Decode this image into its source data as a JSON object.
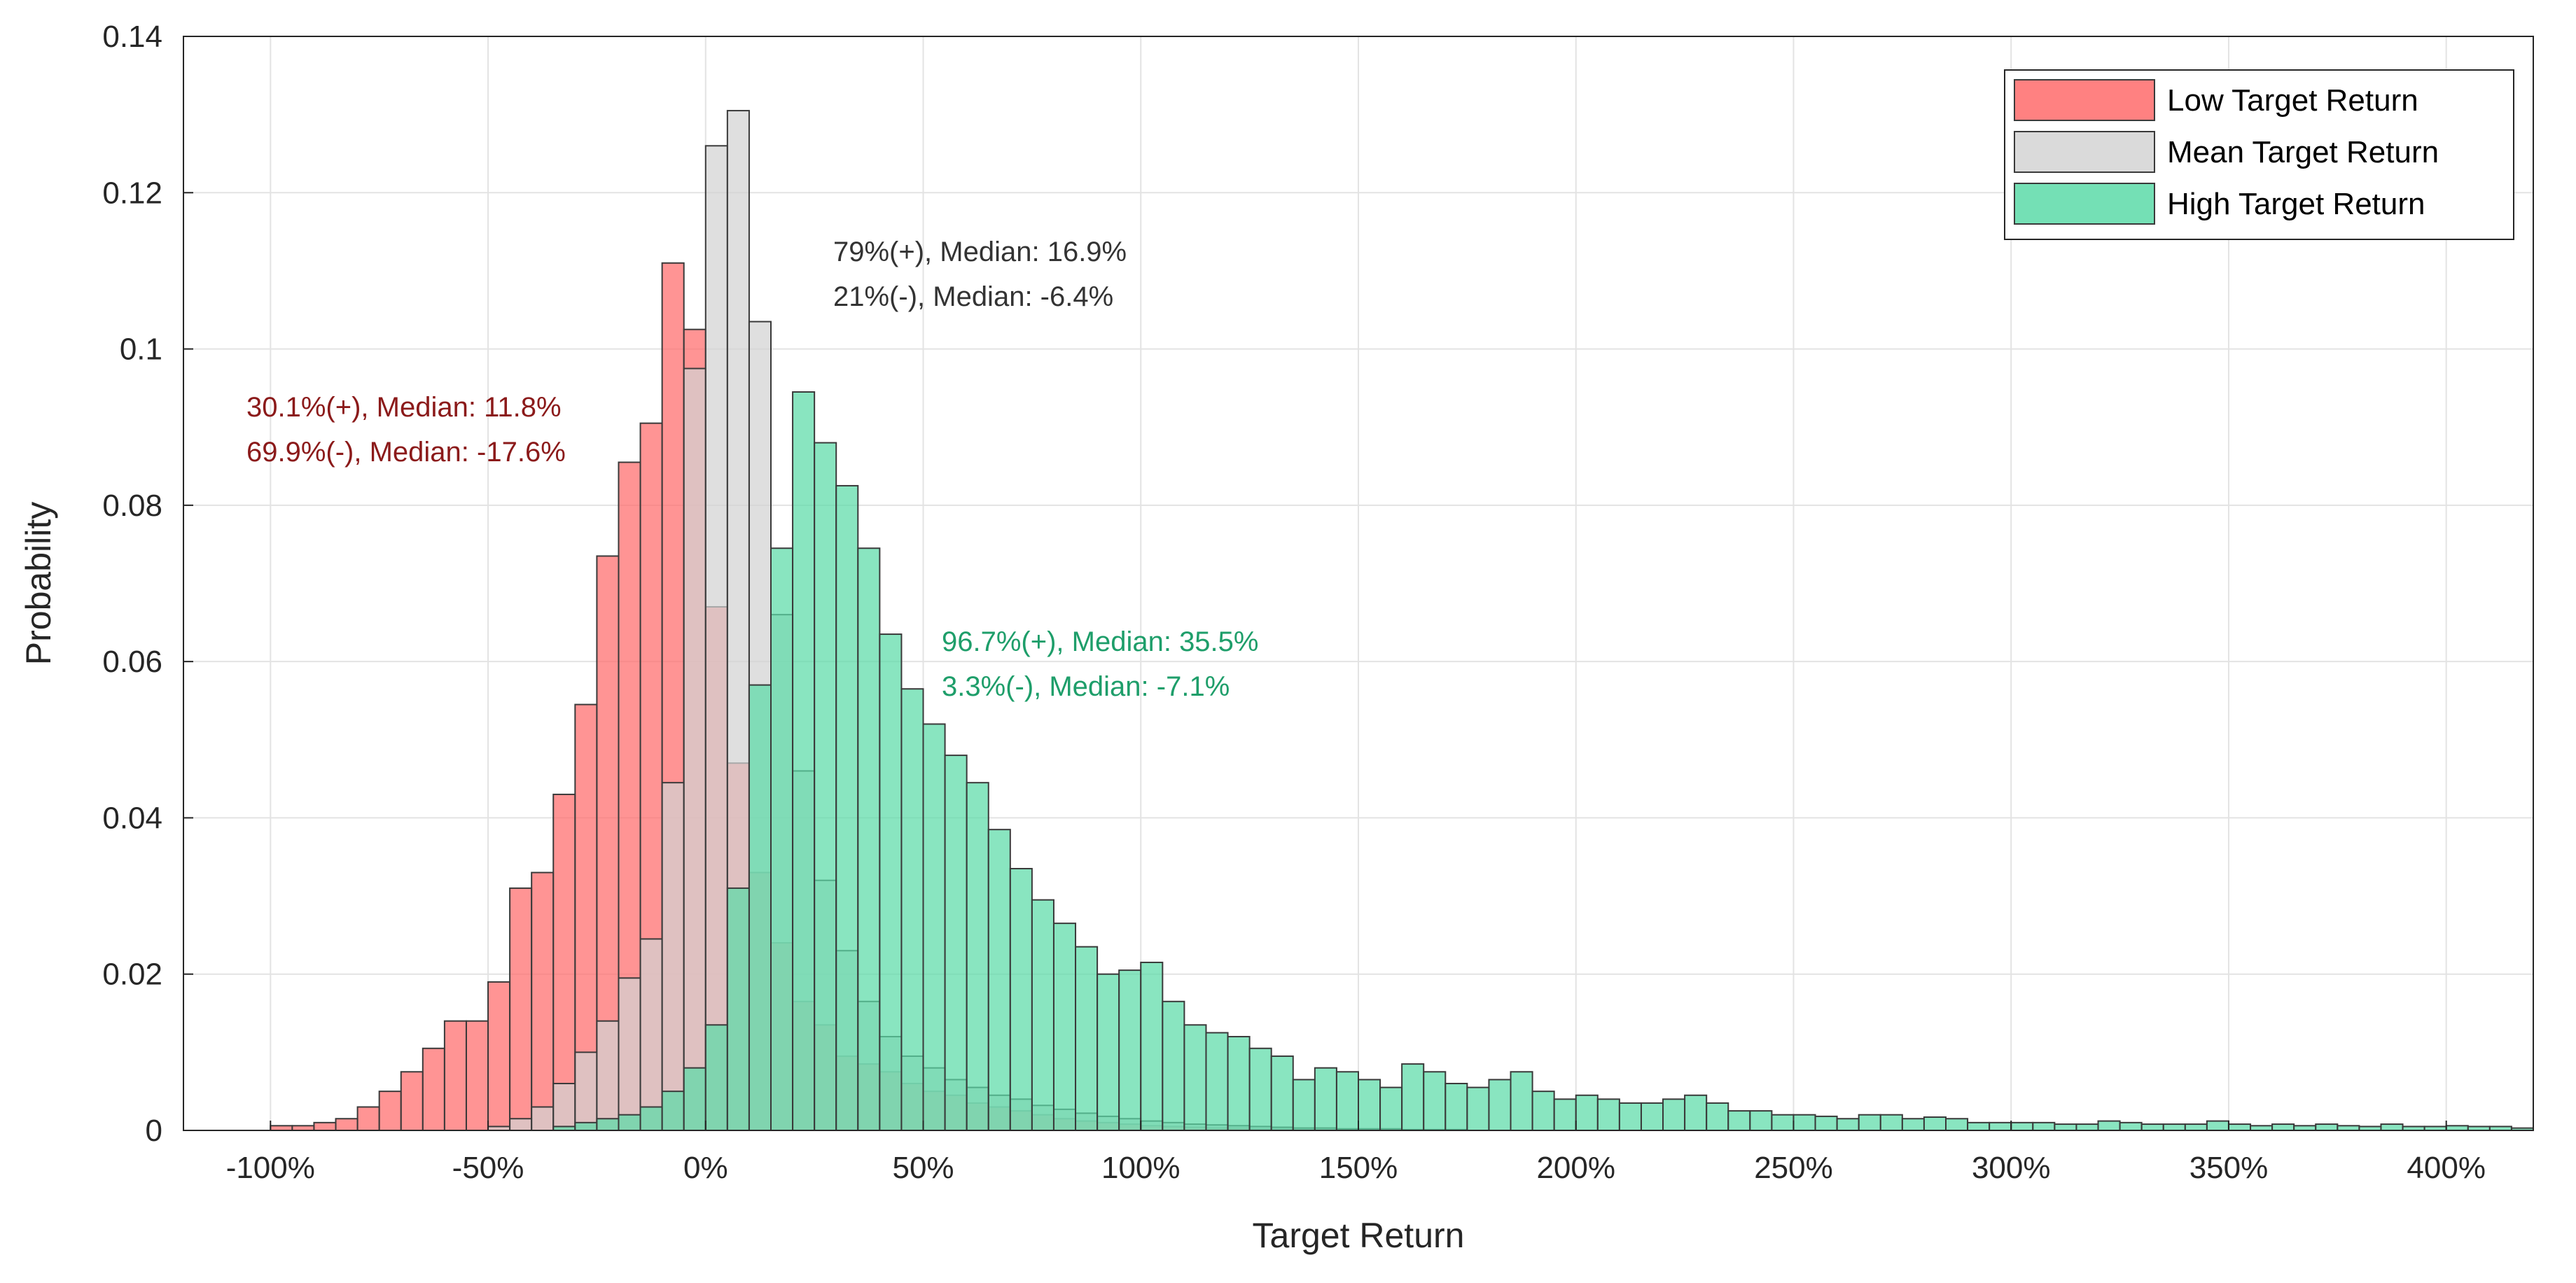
{
  "chart_data": {
    "type": "histogram",
    "xlabel": "Target Return",
    "ylabel": "Probability",
    "xlim": [
      -1.2,
      4.2
    ],
    "ylim": [
      0,
      0.14
    ],
    "grid": true,
    "legend_position": "top-right",
    "bin_width": 0.05,
    "bin_start": -1.0,
    "x_ticks": [
      -1.0,
      -0.5,
      0.0,
      0.5,
      1.0,
      1.5,
      2.0,
      2.5,
      3.0,
      3.5,
      4.0
    ],
    "x_tick_labels": [
      "-100%",
      "-50%",
      "0%",
      "50%",
      "100%",
      "150%",
      "200%",
      "250%",
      "300%",
      "350%",
      "400%"
    ],
    "y_ticks": [
      0,
      0.02,
      0.04,
      0.06,
      0.08,
      0.1,
      0.12,
      0.14
    ],
    "y_tick_labels": [
      "0",
      "0.02",
      "0.04",
      "0.06",
      "0.08",
      "0.1",
      "0.12",
      "0.14"
    ],
    "series": [
      {
        "name": "Low Target Return",
        "color": "#ff6b6b",
        "values": [
          0.0006,
          0.0006,
          0.001,
          0.0015,
          0.003,
          0.005,
          0.0075,
          0.0105,
          0.014,
          0.014,
          0.019,
          0.031,
          0.033,
          0.043,
          0.0545,
          0.0735,
          0.0855,
          0.0905,
          0.111,
          0.1025,
          0.067,
          0.047,
          0.033,
          0.024,
          0.0165,
          0.0135,
          0.0095,
          0.0085,
          0.0075,
          0.006,
          0.005,
          0.0045,
          0.0035,
          0.003,
          0.0025,
          0.002,
          0.0015,
          0.0012,
          0.001,
          0.0008,
          0.0006,
          0.0005,
          0.0004,
          0.0003,
          0.0003,
          0.0002,
          0.0002,
          0.0001,
          0.0001,
          0.0001
        ]
      },
      {
        "name": "Mean Target Return",
        "color": "#d3d3d3",
        "values": [
          0,
          0,
          0,
          0,
          0,
          0,
          0,
          0,
          0,
          0,
          0.0005,
          0.0015,
          0.003,
          0.006,
          0.01,
          0.014,
          0.0195,
          0.0245,
          0.0445,
          0.0975,
          0.126,
          0.1305,
          0.1035,
          0.066,
          0.046,
          0.032,
          0.023,
          0.0165,
          0.012,
          0.0095,
          0.008,
          0.0065,
          0.0055,
          0.0045,
          0.004,
          0.0032,
          0.0027,
          0.0022,
          0.0018,
          0.0015,
          0.0012,
          0.001,
          0.0008,
          0.0007,
          0.0006,
          0.0005,
          0.0004,
          0.0003,
          0.0003,
          0.0002,
          0.0002,
          0.0002,
          0.0001,
          0.0001,
          0.0001
        ]
      },
      {
        "name": "High Target Return",
        "color": "#5cdba8",
        "values": [
          0,
          0,
          0,
          0,
          0,
          0,
          0,
          0,
          0,
          0,
          0,
          0,
          0,
          0.0005,
          0.001,
          0.0015,
          0.002,
          0.003,
          0.005,
          0.008,
          0.0135,
          0.031,
          0.057,
          0.0745,
          0.0945,
          0.088,
          0.0825,
          0.0745,
          0.0635,
          0.0565,
          0.052,
          0.048,
          0.0445,
          0.0385,
          0.0335,
          0.0295,
          0.0265,
          0.0235,
          0.02,
          0.0205,
          0.0215,
          0.0165,
          0.0135,
          0.0125,
          0.012,
          0.0105,
          0.0095,
          0.0065,
          0.008,
          0.0075,
          0.0065,
          0.0055,
          0.0085,
          0.0075,
          0.006,
          0.0055,
          0.0065,
          0.0075,
          0.005,
          0.004,
          0.0045,
          0.004,
          0.0035,
          0.0035,
          0.004,
          0.0045,
          0.0035,
          0.0025,
          0.0025,
          0.002,
          0.002,
          0.0018,
          0.0015,
          0.002,
          0.002,
          0.0015,
          0.0017,
          0.0015,
          0.001,
          0.001,
          0.001,
          0.001,
          0.0008,
          0.0008,
          0.0012,
          0.001,
          0.0008,
          0.0008,
          0.0008,
          0.0012,
          0.0008,
          0.0006,
          0.0008,
          0.0006,
          0.0008,
          0.0006,
          0.0005,
          0.0008,
          0.0005,
          0.0005,
          0.0006,
          0.0005,
          0.0005,
          0.0003
        ]
      }
    ],
    "annotations": [
      {
        "lines": [
          "30.1%(+), Median: 11.8%",
          "69.9%(-), Median: -17.6%"
        ],
        "color": "#8b1a1a"
      },
      {
        "lines": [
          "79%(+), Median: 16.9%",
          "21%(-), Median: -6.4%"
        ],
        "color": "#333333"
      },
      {
        "lines": [
          "96.7%(+), Median: 35.5%",
          "3.3%(-), Median: -7.1%"
        ],
        "color": "#1e9e6a"
      }
    ]
  }
}
